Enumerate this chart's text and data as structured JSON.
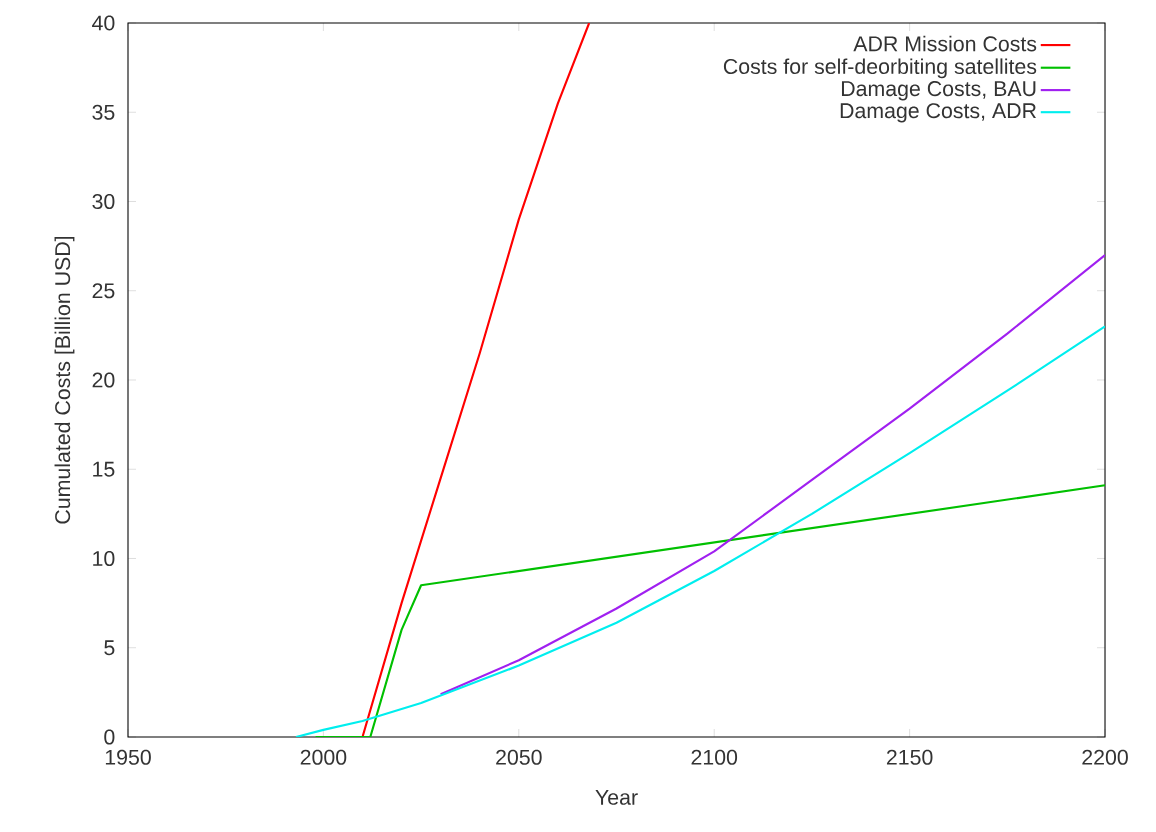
{
  "chart_data": {
    "type": "line",
    "xlabel": "Year",
    "ylabel": "Cumulated Costs [Billion USD]",
    "xlim": [
      1950,
      2200
    ],
    "ylim": [
      0,
      40
    ],
    "xticks": [
      1950,
      2000,
      2050,
      2100,
      2150,
      2200
    ],
    "yticks": [
      0,
      5,
      10,
      15,
      20,
      25,
      30,
      35,
      40
    ],
    "grid": false,
    "legend": "top right",
    "marker": "none",
    "line_style": "solid",
    "series": [
      {
        "name": "ADR Mission Costs",
        "color": "#ff0000",
        "x": [
          2010,
          2020,
          2030,
          2040,
          2050,
          2060,
          2068
        ],
        "values": [
          0,
          7.5,
          14.5,
          21.5,
          29,
          35.5,
          40
        ]
      },
      {
        "name": "Costs for self-deorbiting satellites",
        "color": "#00c000",
        "x": [
          1998,
          2012,
          2020,
          2025,
          2200
        ],
        "values": [
          0,
          0,
          6,
          8.5,
          14.1
        ]
      },
      {
        "name": "Damage Costs, BAU",
        "color": "#a020f0",
        "x": [
          2030,
          2050,
          2075,
          2100,
          2125,
          2150,
          2175,
          2200
        ],
        "values": [
          2.4,
          4.3,
          7.2,
          10.4,
          14.4,
          18.4,
          22.6,
          27.0
        ]
      },
      {
        "name": "Damage Costs, ADR",
        "color": "#00eeee",
        "x": [
          1993,
          2000,
          2010,
          2025,
          2050,
          2075,
          2100,
          2125,
          2150,
          2175,
          2200
        ],
        "values": [
          0,
          0.4,
          0.9,
          1.9,
          4.0,
          6.4,
          9.3,
          12.5,
          15.9,
          19.4,
          23.0
        ]
      }
    ]
  }
}
